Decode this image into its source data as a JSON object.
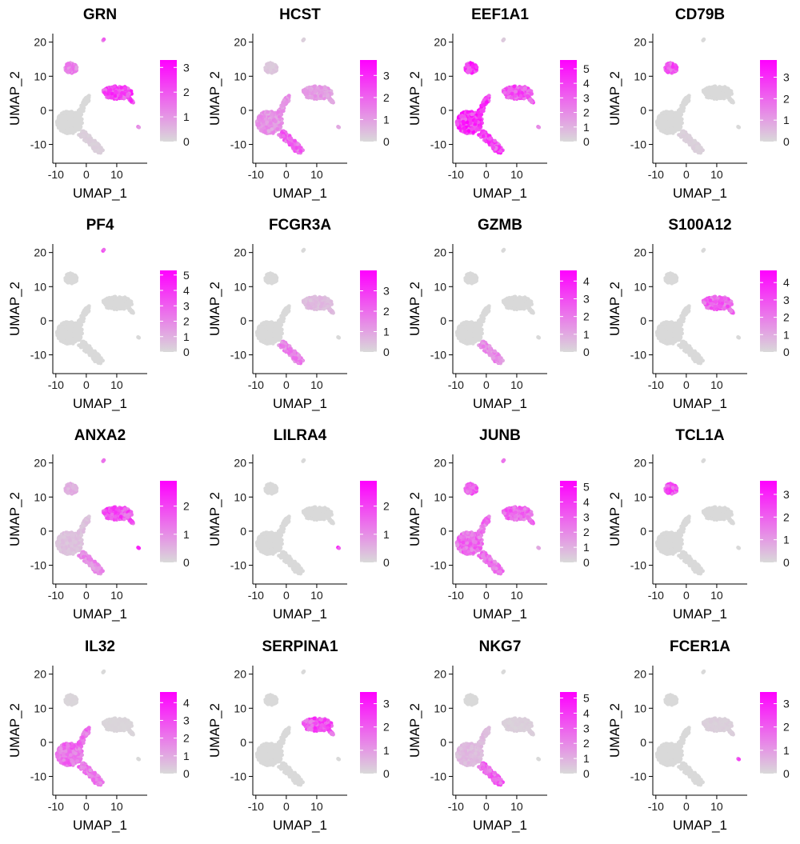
{
  "chart_data": {
    "type": "scatter",
    "title": "",
    "xlabel": "UMAP_1",
    "ylabel": "UMAP_2",
    "xlim": [
      -11,
      20
    ],
    "ylim": [
      -15.5,
      22.5
    ],
    "x_ticks": [
      -10,
      0,
      10
    ],
    "y_ticks": [
      -10,
      0,
      10,
      20
    ],
    "low_color": "#d9d9d9",
    "high_color": "#ff00ff",
    "panels": [
      {
        "gene": "GRN",
        "legend_max": 3.3,
        "legend_ticks": [
          0,
          1,
          2,
          3
        ],
        "expr": {
          "tcell": 0.0,
          "mono": 0.75,
          "b": 0.45,
          "mega": 0.5,
          "nk": 0.05,
          "dc": 0.5
        }
      },
      {
        "gene": "HCST",
        "legend_max": 3.7,
        "legend_ticks": [
          0,
          1,
          2,
          3
        ],
        "expr": {
          "tcell": 0.35,
          "mono": 0.3,
          "b": 0.1,
          "mega": 0.05,
          "nk": 0.6,
          "dc": 0.3
        }
      },
      {
        "gene": "EEF1A1",
        "legend_max": 5.6,
        "legend_ticks": [
          0,
          1,
          2,
          3,
          4,
          5
        ],
        "expr": {
          "tcell": 0.85,
          "mono": 0.7,
          "b": 0.85,
          "mega": 0.1,
          "nk": 0.75,
          "dc": 0.6
        }
      },
      {
        "gene": "CD79B",
        "legend_max": 3.8,
        "legend_ticks": [
          0,
          1,
          2,
          3
        ],
        "expr": {
          "tcell": 0.0,
          "mono": 0.0,
          "b": 0.7,
          "mega": 0.0,
          "nk": 0.05,
          "dc": 0.0
        }
      },
      {
        "gene": "PF4",
        "legend_max": 5.3,
        "legend_ticks": [
          0,
          1,
          2,
          3,
          4,
          5
        ],
        "expr": {
          "tcell": 0.0,
          "mono": 0.0,
          "b": 0.0,
          "mega": 0.9,
          "nk": 0.0,
          "dc": 0.0
        }
      },
      {
        "gene": "FCGR3A",
        "legend_max": 4.0,
        "legend_ticks": [
          0,
          1,
          2,
          3
        ],
        "expr": {
          "tcell": 0.0,
          "mono": 0.15,
          "b": 0.0,
          "mega": 0.0,
          "nk": 0.45,
          "dc": 0.0
        }
      },
      {
        "gene": "GZMB",
        "legend_max": 4.6,
        "legend_ticks": [
          0,
          1,
          2,
          3,
          4
        ],
        "expr": {
          "tcell": 0.0,
          "mono": 0.0,
          "b": 0.0,
          "mega": 0.0,
          "nk": 0.4,
          "dc": 0.0
        }
      },
      {
        "gene": "S100A12",
        "legend_max": 4.7,
        "legend_ticks": [
          0,
          1,
          2,
          3,
          4
        ],
        "expr": {
          "tcell": 0.0,
          "mono": 0.6,
          "b": 0.0,
          "mega": 0.0,
          "nk": 0.0,
          "dc": 0.0
        }
      },
      {
        "gene": "ANXA2",
        "legend_max": 2.9,
        "legend_ticks": [
          0,
          1,
          2
        ],
        "expr": {
          "tcell": 0.12,
          "mono": 0.7,
          "b": 0.2,
          "mega": 0.4,
          "nk": 0.4,
          "dc": 0.8
        }
      },
      {
        "gene": "LILRA4",
        "legend_max": 2.9,
        "legend_ticks": [
          0,
          1,
          2
        ],
        "expr": {
          "tcell": 0.0,
          "mono": 0.0,
          "b": 0.0,
          "mega": 0.0,
          "nk": 0.0,
          "dc": 0.95
        }
      },
      {
        "gene": "JUNB",
        "legend_max": 5.4,
        "legend_ticks": [
          0,
          1,
          2,
          3,
          4,
          5
        ],
        "expr": {
          "tcell": 0.55,
          "mono": 0.6,
          "b": 0.65,
          "mega": 0.5,
          "nk": 0.55,
          "dc": 0.3
        }
      },
      {
        "gene": "TCL1A",
        "legend_max": 3.6,
        "legend_ticks": [
          0,
          1,
          2,
          3
        ],
        "expr": {
          "tcell": 0.0,
          "mono": 0.0,
          "b": 0.75,
          "mega": 0.0,
          "nk": 0.0,
          "dc": 0.0
        }
      },
      {
        "gene": "IL32",
        "legend_max": 4.6,
        "legend_ticks": [
          0,
          1,
          2,
          3,
          4
        ],
        "expr": {
          "tcell": 0.55,
          "mono": 0.02,
          "b": 0.02,
          "mega": 0.0,
          "nk": 0.5,
          "dc": 0.0
        }
      },
      {
        "gene": "SERPINA1",
        "legend_max": 3.5,
        "legend_ticks": [
          0,
          1,
          2,
          3
        ],
        "expr": {
          "tcell": 0.0,
          "mono": 0.7,
          "b": 0.0,
          "mega": 0.0,
          "nk": 0.0,
          "dc": 0.0
        }
      },
      {
        "gene": "NKG7",
        "legend_max": 5.4,
        "legend_ticks": [
          0,
          1,
          2,
          3,
          4,
          5
        ],
        "expr": {
          "tcell": 0.15,
          "mono": 0.05,
          "b": 0.0,
          "mega": 0.0,
          "nk": 0.6,
          "dc": 0.0
        }
      },
      {
        "gene": "FCER1A",
        "legend_max": 3.5,
        "legend_ticks": [
          0,
          1,
          2,
          3
        ],
        "expr": {
          "tcell": 0.0,
          "mono": 0.05,
          "b": 0.0,
          "mega": 0.0,
          "nk": 0.0,
          "dc": 0.7
        }
      }
    ]
  }
}
